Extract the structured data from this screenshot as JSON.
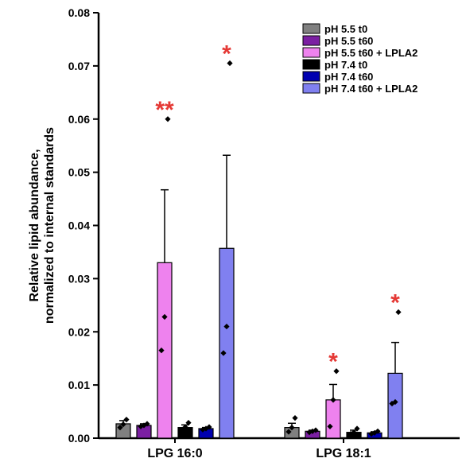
{
  "chart_data": {
    "type": "bar",
    "categories": [
      "LPG 16:0",
      "LPG 18:1"
    ],
    "ylabel_lines": [
      "Relative lipid abundance,",
      "normalized to internal standards"
    ],
    "ylim": [
      0,
      0.08
    ],
    "yticks": [
      "0.00",
      "0.01",
      "0.02",
      "0.03",
      "0.04",
      "0.05",
      "0.06",
      "0.07",
      "0.08"
    ],
    "grid": false,
    "legend_position": "top-right",
    "series": [
      {
        "name": "pH 5.5 t0",
        "color": "#808080",
        "values": [
          0.0027,
          0.002
        ],
        "error": [
          0.0006,
          0.0008
        ],
        "points": [
          [
            0.002,
            0.0026,
            0.0035
          ],
          [
            0.0012,
            0.002,
            0.0038
          ]
        ],
        "sig": [
          "",
          ""
        ]
      },
      {
        "name": "pH 5.5 t60",
        "color": "#7b1fa2",
        "values": [
          0.0024,
          0.0013
        ],
        "error": [
          0.0003,
          0.0002
        ],
        "points": [
          [
            0.0022,
            0.0024,
            0.0027
          ],
          [
            0.0011,
            0.0013,
            0.0015
          ]
        ],
        "sig": [
          "",
          ""
        ]
      },
      {
        "name": "pH 5.5 t60 + LPLA2",
        "color": "#ee82ee",
        "values": [
          0.033,
          0.0072
        ],
        "error": [
          0.0137,
          0.0029
        ],
        "points": [
          [
            0.0165,
            0.0228,
            0.06
          ],
          [
            0.0022,
            0.0072,
            0.0126
          ]
        ],
        "sig": [
          "**",
          "*"
        ]
      },
      {
        "name": "pH 7.4 t0",
        "color": "#000000",
        "values": [
          0.002,
          0.0011
        ],
        "error": [
          0.0005,
          0.0004
        ],
        "points": [
          [
            0.0016,
            0.0021,
            0.0029
          ],
          [
            0.0008,
            0.0011,
            0.0018
          ]
        ],
        "sig": [
          "",
          ""
        ]
      },
      {
        "name": "pH 7.4 t60",
        "color": "#0000b0",
        "values": [
          0.0018,
          0.001
        ],
        "error": [
          0.0002,
          0.0002
        ],
        "points": [
          [
            0.0016,
            0.0018,
            0.0021
          ],
          [
            0.0008,
            0.001,
            0.0013
          ]
        ],
        "sig": [
          "",
          ""
        ]
      },
      {
        "name": "pH 7.4 t60 + LPLA2",
        "color": "#8080f0",
        "values": [
          0.0357,
          0.0122
        ],
        "error": [
          0.0175,
          0.0058
        ],
        "points": [
          [
            0.016,
            0.021,
            0.0705
          ],
          [
            0.0065,
            0.0068,
            0.0237
          ]
        ],
        "sig": [
          "*",
          "*"
        ]
      }
    ]
  },
  "colors": {
    "significance": "#e53935",
    "axis": "#000000"
  }
}
